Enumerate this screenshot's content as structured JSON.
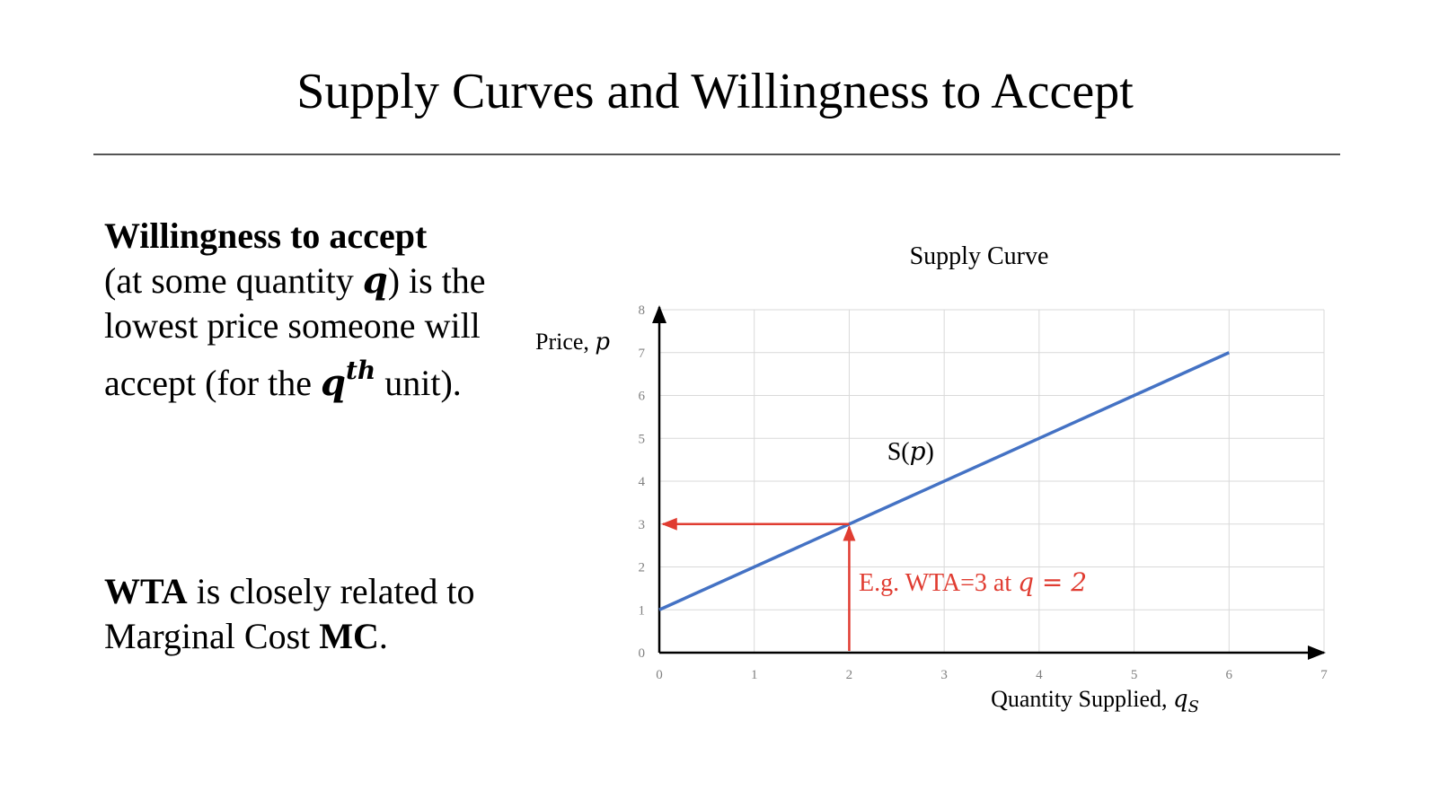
{
  "slide": {
    "title": "Supply Curves and Willingness to Accept"
  },
  "text": {
    "p1_bold": "Willingness to accept",
    "p1_a": "(at some quantity ",
    "p1_q": "q",
    "p1_b": ") is the lowest price someone will accept (for the ",
    "p1_q2": "q",
    "p1_sup": "th",
    "p1_c": " unit).",
    "p2_bold1": "WTA",
    "p2_a": " is closely related to Marginal Cost ",
    "p2_bold2": "MC",
    "p2_b": "."
  },
  "chart_data": {
    "type": "line",
    "title": "Supply Curve",
    "xlabel_text": "Quantity Supplied, ",
    "xlabel_math": "q",
    "xlabel_sub": "S",
    "ylabel_text": "Price, ",
    "ylabel_math": "p",
    "xlim": [
      0,
      7
    ],
    "ylim": [
      0,
      8
    ],
    "xticks": [
      0,
      1,
      2,
      3,
      4,
      5,
      6,
      7
    ],
    "yticks": [
      0,
      1,
      2,
      3,
      4,
      5,
      6,
      7,
      8
    ],
    "grid": true,
    "series": [
      {
        "name": "S(p)",
        "color": "#4472C4",
        "x": [
          0,
          6
        ],
        "y": [
          1,
          7
        ]
      }
    ],
    "series_label_text": "S(",
    "series_label_math": "p",
    "series_label_close": ")",
    "series_label_at": [
      2.4,
      4.5
    ],
    "annotation": {
      "color": "#E03C31",
      "point": [
        2,
        3
      ],
      "text": "E.g. WTA=3 at ",
      "math": "q = 2",
      "text_at": [
        2.1,
        1.45
      ]
    }
  }
}
